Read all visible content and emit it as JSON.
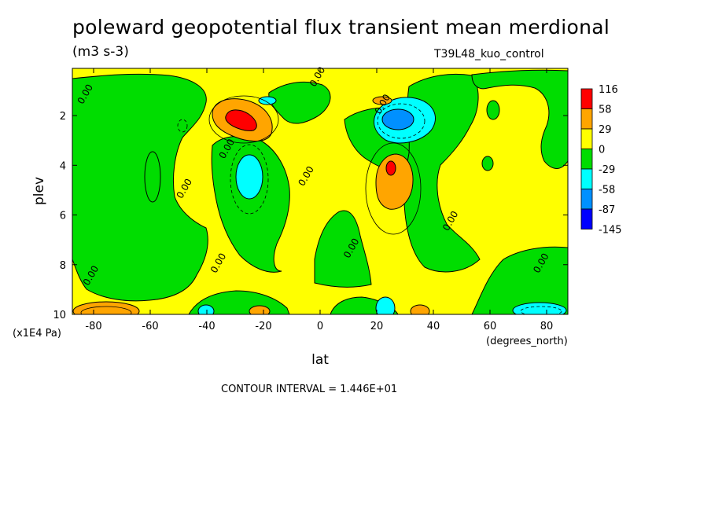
{
  "header": {
    "title": "poleward geopotential flux transient mean merdional",
    "units": "(m3 s-3)",
    "run": "T39L48_kuo_control"
  },
  "footer": {
    "contour_interval": "CONTOUR INTERVAL = 1.446E+01"
  },
  "chart_data": {
    "type": "heatmap",
    "title": "poleward geopotential flux transient mean merdional",
    "subtitle": "(m3 s-3)",
    "xlabel": "lat",
    "ylabel": "plev",
    "x_units": "(degrees_north)",
    "y_units": "(x1E4 Pa)",
    "xlim": [
      -87.5,
      87.5
    ],
    "ylim": [
      0.1,
      10
    ],
    "y_inverted": true,
    "x_ticks": [
      -80,
      -60,
      -40,
      -20,
      0,
      20,
      40,
      60,
      80
    ],
    "y_ticks": [
      2,
      4,
      6,
      8,
      10
    ],
    "contour_interval": 14.46,
    "colorbar": {
      "levels": [
        "116",
        "58",
        "29",
        "0",
        "-29",
        "-58",
        "-87",
        "-145"
      ],
      "colors": [
        "#ff0000",
        "#ffa500",
        "#ffff00",
        "#00dd00",
        "#00ffff",
        "#0090ff",
        "#0000ff"
      ]
    },
    "zero_contour_labels": [
      {
        "text": "0.00",
        "lat": -82,
        "plev": 1.2
      },
      {
        "text": "0.00",
        "lat": 0,
        "plev": 0.5
      },
      {
        "text": "0.00",
        "lat": 23,
        "plev": 1.6
      },
      {
        "text": "0.00",
        "lat": -32,
        "plev": 3.4
      },
      {
        "text": "0.00",
        "lat": -47,
        "plev": 5.0
      },
      {
        "text": "0.00",
        "lat": -4,
        "plev": 4.5
      },
      {
        "text": "0.00",
        "lat": 12,
        "plev": 7.4
      },
      {
        "text": "0.00",
        "lat": 47,
        "plev": 6.3
      },
      {
        "text": "0.00",
        "lat": -35,
        "plev": 8.0
      },
      {
        "text": "0.00",
        "lat": -80,
        "plev": 8.5
      },
      {
        "text": "0.00",
        "lat": 79,
        "plev": 8.0
      }
    ],
    "extrema": [
      {
        "lat": -27,
        "plev": 2.3,
        "value": 116,
        "sign": "max"
      },
      {
        "lat": 26,
        "plev": 4.2,
        "value": 72,
        "sign": "max"
      },
      {
        "lat": 29,
        "plev": 2.3,
        "value": -110,
        "sign": "min"
      },
      {
        "lat": -24,
        "plev": 1.5,
        "value": -40,
        "sign": "min"
      },
      {
        "lat": -23,
        "plev": 4.8,
        "value": -50,
        "sign": "min"
      },
      {
        "lat": -82,
        "plev": 10,
        "value": 75,
        "sign": "max"
      },
      {
        "lat": 82,
        "plev": 10,
        "value": -60,
        "sign": "min"
      }
    ]
  }
}
